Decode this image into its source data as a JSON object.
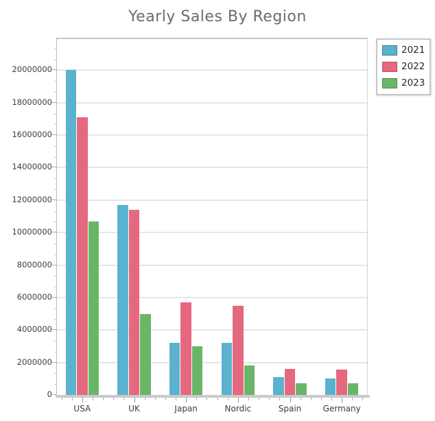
{
  "title": "Yearly Sales By Region",
  "chart_data": {
    "type": "bar",
    "title": "Yearly Sales By Region",
    "xlabel": "",
    "ylabel": "",
    "categories": [
      "USA",
      "UK",
      "Japan",
      "Nordic",
      "Spain",
      "Germany"
    ],
    "series": [
      {
        "name": "2021",
        "color": "#5bb2ce",
        "border_color": "#417f96",
        "values": [
          20000000,
          11700000,
          3200000,
          3200000,
          1100000,
          1000000
        ]
      },
      {
        "name": "2022",
        "color": "#e5697e",
        "border_color": "#bf4f62",
        "values": [
          17100000,
          11400000,
          5700000,
          5500000,
          1600000,
          1550000
        ]
      },
      {
        "name": "2023",
        "color": "#69b669",
        "border_color": "#4c8f53",
        "values": [
          10700000,
          5000000,
          3000000,
          1800000,
          700000,
          700000
        ]
      }
    ],
    "ylim": [
      0,
      22000000
    ],
    "y_tick_step": 2000000,
    "y_tick_labels": [
      "0",
      "2000000",
      "4000000",
      "6000000",
      "8000000",
      "10000000",
      "12000000",
      "14000000",
      "16000000",
      "18000000",
      "20000000"
    ],
    "grid": true,
    "legend_position": "top-right",
    "legend_entries": [
      "2021",
      "2022",
      "2023"
    ]
  }
}
